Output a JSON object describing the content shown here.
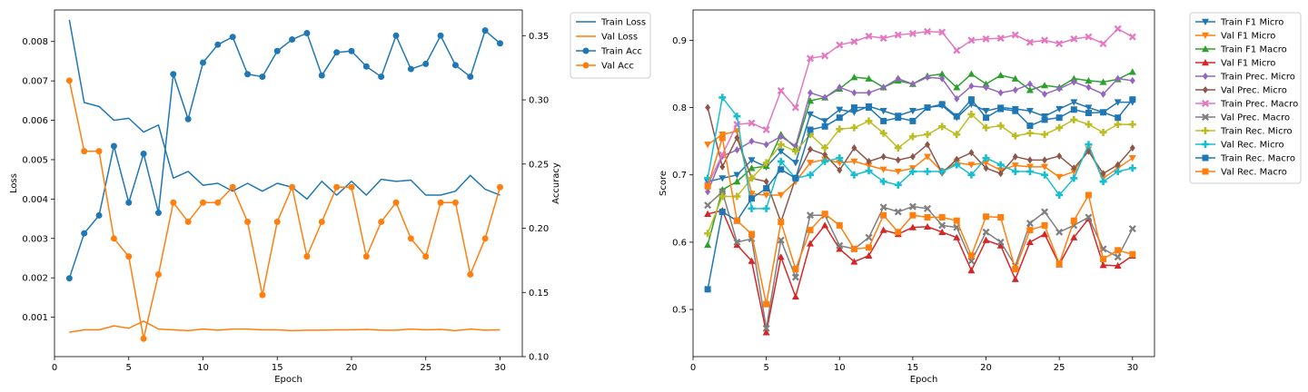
{
  "chart_data": [
    {
      "type": "line",
      "xlabel": "Epoch",
      "ylabel": "Loss",
      "y2label": "Accuracy",
      "x": [
        1,
        2,
        3,
        4,
        5,
        6,
        7,
        8,
        9,
        10,
        11,
        12,
        13,
        14,
        15,
        16,
        17,
        18,
        19,
        20,
        21,
        22,
        23,
        24,
        25,
        26,
        27,
        28,
        29,
        30
      ],
      "xlim": [
        0,
        31.5
      ],
      "ylim": [
        0.0,
        0.0088
      ],
      "y2lim": [
        0.1,
        0.37
      ],
      "xticks": [
        0,
        5,
        10,
        15,
        20,
        25,
        30
      ],
      "yticks": [
        0.001,
        0.002,
        0.003,
        0.004,
        0.005,
        0.006,
        0.007,
        0.008
      ],
      "ytick_labels": [
        "0.001",
        "0.002",
        "0.003",
        "0.004",
        "0.005",
        "0.006",
        "0.007",
        "0.008"
      ],
      "y2ticks": [
        0.1,
        0.15,
        0.2,
        0.25,
        0.3,
        0.35
      ],
      "y2tick_labels": [
        "0.10",
        "0.15",
        "0.20",
        "0.25",
        "0.30",
        "0.35"
      ],
      "grid": false,
      "legend_position": "outside-right",
      "series": [
        {
          "name": "Train Loss",
          "axis": "left",
          "color": "#1f77b4",
          "marker": "none",
          "values": [
            0.00855,
            0.00645,
            0.00635,
            0.006,
            0.00605,
            0.0057,
            0.00588,
            0.00453,
            0.0047,
            0.00435,
            0.0044,
            0.0042,
            0.0044,
            0.0042,
            0.0044,
            0.0043,
            0.004,
            0.00445,
            0.0041,
            0.00445,
            0.0041,
            0.0045,
            0.00445,
            0.00448,
            0.0041,
            0.0041,
            0.0042,
            0.0046,
            0.00425,
            0.0041
          ]
        },
        {
          "name": "Val Loss",
          "axis": "left",
          "color": "#ff7f0e",
          "marker": "none",
          "values": [
            0.00062,
            0.00068,
            0.00068,
            0.00078,
            0.00072,
            0.0009,
            0.0007,
            0.00068,
            0.00066,
            0.0007,
            0.00067,
            0.0007,
            0.0007,
            0.00068,
            0.00068,
            0.00066,
            0.00067,
            0.00067,
            0.00068,
            0.00068,
            0.00069,
            0.00067,
            0.00067,
            0.0007,
            0.00068,
            0.00069,
            0.00066,
            0.0007,
            0.00067,
            0.00068
          ]
        },
        {
          "name": "Train Acc",
          "axis": "right",
          "color": "#1f77b4",
          "marker": "circle",
          "values": [
            0.161,
            0.196,
            0.21,
            0.264,
            0.22,
            0.258,
            0.212,
            0.32,
            0.285,
            0.329,
            0.343,
            0.349,
            0.32,
            0.318,
            0.338,
            0.347,
            0.352,
            0.319,
            0.337,
            0.338,
            0.326,
            0.318,
            0.35,
            0.324,
            0.328,
            0.35,
            0.327,
            0.318,
            0.354,
            0.344
          ]
        },
        {
          "name": "Val Acc",
          "axis": "right",
          "color": "#ff7f0e",
          "marker": "circle",
          "values": [
            0.315,
            0.26,
            0.26,
            0.192,
            0.178,
            0.114,
            0.164,
            0.22,
            0.205,
            0.22,
            0.22,
            0.232,
            0.205,
            0.148,
            0.205,
            0.232,
            0.178,
            0.205,
            0.232,
            0.232,
            0.178,
            0.205,
            0.22,
            0.192,
            0.178,
            0.22,
            0.22,
            0.164,
            0.192,
            0.232
          ]
        }
      ]
    },
    {
      "type": "line",
      "xlabel": "Epoch",
      "ylabel": "Score",
      "x": [
        1,
        2,
        3,
        4,
        5,
        6,
        7,
        8,
        9,
        10,
        11,
        12,
        13,
        14,
        15,
        16,
        17,
        18,
        19,
        20,
        21,
        22,
        23,
        24,
        25,
        26,
        27,
        28,
        29,
        30
      ],
      "xlim": [
        0,
        31.5
      ],
      "ylim": [
        0.43,
        0.945
      ],
      "xticks": [
        0,
        5,
        10,
        15,
        20,
        25,
        30
      ],
      "yticks": [
        0.5,
        0.6,
        0.7,
        0.8,
        0.9
      ],
      "ytick_labels": [
        "0.5",
        "0.6",
        "0.7",
        "0.8",
        "0.9"
      ],
      "grid": false,
      "legend_position": "outside-right",
      "series": [
        {
          "name": "Train F1 Micro",
          "color": "#1f77b4",
          "marker": "triangle-down",
          "values": [
            0.69,
            0.695,
            0.7,
            0.722,
            0.712,
            0.735,
            0.718,
            0.79,
            0.78,
            0.797,
            0.793,
            0.802,
            0.795,
            0.788,
            0.795,
            0.8,
            0.803,
            0.785,
            0.805,
            0.795,
            0.8,
            0.798,
            0.795,
            0.787,
            0.798,
            0.808,
            0.8,
            0.793,
            0.808,
            0.808
          ]
        },
        {
          "name": "Val F1 Micro",
          "color": "#ff7f0e",
          "marker": "triangle-down",
          "values": [
            0.745,
            0.76,
            0.765,
            0.672,
            0.67,
            0.67,
            0.69,
            0.718,
            0.723,
            0.718,
            0.72,
            0.714,
            0.708,
            0.705,
            0.71,
            0.727,
            0.705,
            0.718,
            0.715,
            0.718,
            0.707,
            0.714,
            0.712,
            0.712,
            0.697,
            0.705,
            0.738,
            0.695,
            0.71,
            0.725
          ]
        },
        {
          "name": "Train F1 Macro",
          "color": "#2ca02c",
          "marker": "triangle-up",
          "values": [
            0.596,
            0.678,
            0.69,
            0.71,
            0.713,
            0.76,
            0.74,
            0.81,
            0.815,
            0.828,
            0.845,
            0.843,
            0.83,
            0.84,
            0.835,
            0.847,
            0.85,
            0.83,
            0.85,
            0.835,
            0.848,
            0.843,
            0.826,
            0.833,
            0.83,
            0.843,
            0.84,
            0.838,
            0.842,
            0.853
          ]
        },
        {
          "name": "Val F1 Micro",
          "color": "#d62728",
          "marker": "triangle-up",
          "values": [
            0.642,
            0.647,
            0.596,
            0.572,
            0.466,
            0.578,
            0.519,
            0.598,
            0.625,
            0.59,
            0.571,
            0.58,
            0.618,
            0.612,
            0.622,
            0.623,
            0.615,
            0.607,
            0.558,
            0.603,
            0.595,
            0.545,
            0.6,
            0.612,
            0.567,
            0.607,
            0.635,
            0.566,
            0.565,
            0.58
          ]
        },
        {
          "name": "Train Prec. Micro",
          "color": "#9467bd",
          "marker": "diamond",
          "values": [
            0.675,
            0.728,
            0.737,
            0.75,
            0.745,
            0.757,
            0.743,
            0.822,
            0.815,
            0.83,
            0.822,
            0.822,
            0.83,
            0.843,
            0.835,
            0.845,
            0.843,
            0.813,
            0.832,
            0.83,
            0.822,
            0.826,
            0.835,
            0.82,
            0.828,
            0.838,
            0.83,
            0.82,
            0.843,
            0.84
          ]
        },
        {
          "name": "Val Prec. Micro",
          "color": "#8c564b",
          "marker": "diamond",
          "values": [
            0.8,
            0.712,
            0.755,
            0.695,
            0.69,
            0.63,
            0.695,
            0.738,
            0.73,
            0.707,
            0.74,
            0.72,
            0.727,
            0.722,
            0.727,
            0.745,
            0.703,
            0.723,
            0.733,
            0.71,
            0.702,
            0.727,
            0.722,
            0.722,
            0.728,
            0.71,
            0.735,
            0.702,
            0.715,
            0.74
          ]
        },
        {
          "name": "Train Prec. Macro",
          "color": "#e377c2",
          "marker": "x-filled",
          "values": [
            0.685,
            0.73,
            0.775,
            0.777,
            0.767,
            0.825,
            0.8,
            0.873,
            0.877,
            0.893,
            0.898,
            0.906,
            0.903,
            0.908,
            0.91,
            0.913,
            0.912,
            0.885,
            0.9,
            0.902,
            0.903,
            0.908,
            0.897,
            0.9,
            0.895,
            0.902,
            0.905,
            0.895,
            0.917,
            0.905
          ]
        },
        {
          "name": "Val Prec. Macro",
          "color": "#7f7f7f",
          "marker": "x-filled",
          "values": [
            0.655,
            0.675,
            0.6,
            0.605,
            0.472,
            0.603,
            0.548,
            0.64,
            0.64,
            0.595,
            0.59,
            0.607,
            0.652,
            0.645,
            0.653,
            0.65,
            0.625,
            0.622,
            0.572,
            0.615,
            0.6,
            0.565,
            0.628,
            0.645,
            0.615,
            0.625,
            0.637,
            0.59,
            0.578,
            0.62
          ]
        },
        {
          "name": "Train Rec. Micro",
          "color": "#bcbd22",
          "marker": "plus-filled",
          "values": [
            0.613,
            0.668,
            0.668,
            0.695,
            0.718,
            0.745,
            0.735,
            0.76,
            0.74,
            0.768,
            0.77,
            0.78,
            0.762,
            0.74,
            0.757,
            0.76,
            0.772,
            0.76,
            0.79,
            0.77,
            0.773,
            0.758,
            0.762,
            0.76,
            0.77,
            0.782,
            0.775,
            0.763,
            0.775,
            0.775
          ]
        },
        {
          "name": "Val Rec. Micro",
          "color": "#17becf",
          "marker": "plus-filled",
          "values": [
            0.695,
            0.815,
            0.787,
            0.65,
            0.65,
            0.72,
            0.695,
            0.7,
            0.72,
            0.725,
            0.7,
            0.706,
            0.69,
            0.685,
            0.705,
            0.705,
            0.705,
            0.715,
            0.7,
            0.725,
            0.715,
            0.705,
            0.705,
            0.7,
            0.67,
            0.695,
            0.745,
            0.69,
            0.705,
            0.71
          ]
        },
        {
          "name": "Train Rec. Macro",
          "color": "#1f77b4",
          "marker": "square",
          "values": [
            0.53,
            0.645,
            0.632,
            0.665,
            0.68,
            0.708,
            0.695,
            0.767,
            0.772,
            0.785,
            0.8,
            0.8,
            0.78,
            0.785,
            0.78,
            0.8,
            0.805,
            0.787,
            0.812,
            0.785,
            0.798,
            0.795,
            0.773,
            0.782,
            0.785,
            0.797,
            0.792,
            0.793,
            0.785,
            0.812
          ]
        },
        {
          "name": "Val Rec. Macro",
          "color": "#ff7f0e",
          "marker": "square",
          "values": [
            0.683,
            0.755,
            0.632,
            0.612,
            0.508,
            0.63,
            0.56,
            0.618,
            0.642,
            0.625,
            0.59,
            0.592,
            0.64,
            0.615,
            0.64,
            0.637,
            0.637,
            0.632,
            0.58,
            0.638,
            0.637,
            0.56,
            0.618,
            0.625,
            0.568,
            0.632,
            0.67,
            0.575,
            0.588,
            0.582
          ]
        }
      ]
    }
  ]
}
